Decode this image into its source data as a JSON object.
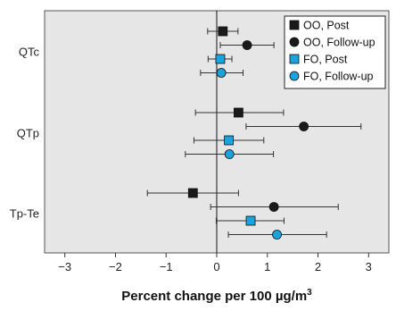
{
  "chart_data": {
    "type": "scatter",
    "orientation": "horizontal",
    "title": "",
    "xlabel": "Percent change per 100 µg/m",
    "xlabel_sup": "3",
    "ylabel": "",
    "xlim": [
      -3.4,
      3.4
    ],
    "xticks": [
      -3,
      -2,
      -1,
      0,
      1,
      2,
      3
    ],
    "xtick_labels": [
      "−3",
      "−2",
      "−1",
      "0",
      "1",
      "2",
      "3"
    ],
    "grid": false,
    "legend_position": "top-right",
    "categories": [
      "QTc",
      "QTp",
      "Tp-Te"
    ],
    "reference_line": 0,
    "colors": {
      "panel_bg": "#e6e6e6",
      "OO": "#1a1a1a",
      "FO": "#1ba3dd",
      "errorbar": "#333333"
    },
    "series": [
      {
        "name": "OO, Post",
        "marker": "square",
        "color": "#1a1a1a",
        "points": [
          {
            "category": "QTc",
            "value": 0.12,
            "ci_low": -0.18,
            "ci_high": 0.42
          },
          {
            "category": "QTp",
            "value": 0.43,
            "ci_low": -0.42,
            "ci_high": 1.32
          },
          {
            "category": "Tp-Te",
            "value": -0.47,
            "ci_low": -1.37,
            "ci_high": 0.43
          }
        ]
      },
      {
        "name": "OO, Follow-up",
        "marker": "circle",
        "color": "#1a1a1a",
        "points": [
          {
            "category": "QTc",
            "value": 0.6,
            "ci_low": 0.07,
            "ci_high": 1.13
          },
          {
            "category": "QTp",
            "value": 1.72,
            "ci_low": 0.58,
            "ci_high": 2.85
          },
          {
            "category": "Tp-Te",
            "value": 1.13,
            "ci_low": -0.12,
            "ci_high": 2.4
          }
        ]
      },
      {
        "name": "FO, Post",
        "marker": "square",
        "color": "#1ba3dd",
        "points": [
          {
            "category": "QTc",
            "value": 0.07,
            "ci_low": -0.17,
            "ci_high": 0.3
          },
          {
            "category": "QTp",
            "value": 0.24,
            "ci_low": -0.45,
            "ci_high": 0.93
          },
          {
            "category": "Tp-Te",
            "value": 0.67,
            "ci_low": -0.01,
            "ci_high": 1.33
          }
        ]
      },
      {
        "name": "FO, Follow-up",
        "marker": "circle",
        "color": "#1ba3dd",
        "points": [
          {
            "category": "QTc",
            "value": 0.09,
            "ci_low": -0.32,
            "ci_high": 0.52
          },
          {
            "category": "QTp",
            "value": 0.25,
            "ci_low": -0.62,
            "ci_high": 1.12
          },
          {
            "category": "Tp-Te",
            "value": 1.19,
            "ci_low": 0.23,
            "ci_high": 2.17
          }
        ]
      }
    ]
  }
}
